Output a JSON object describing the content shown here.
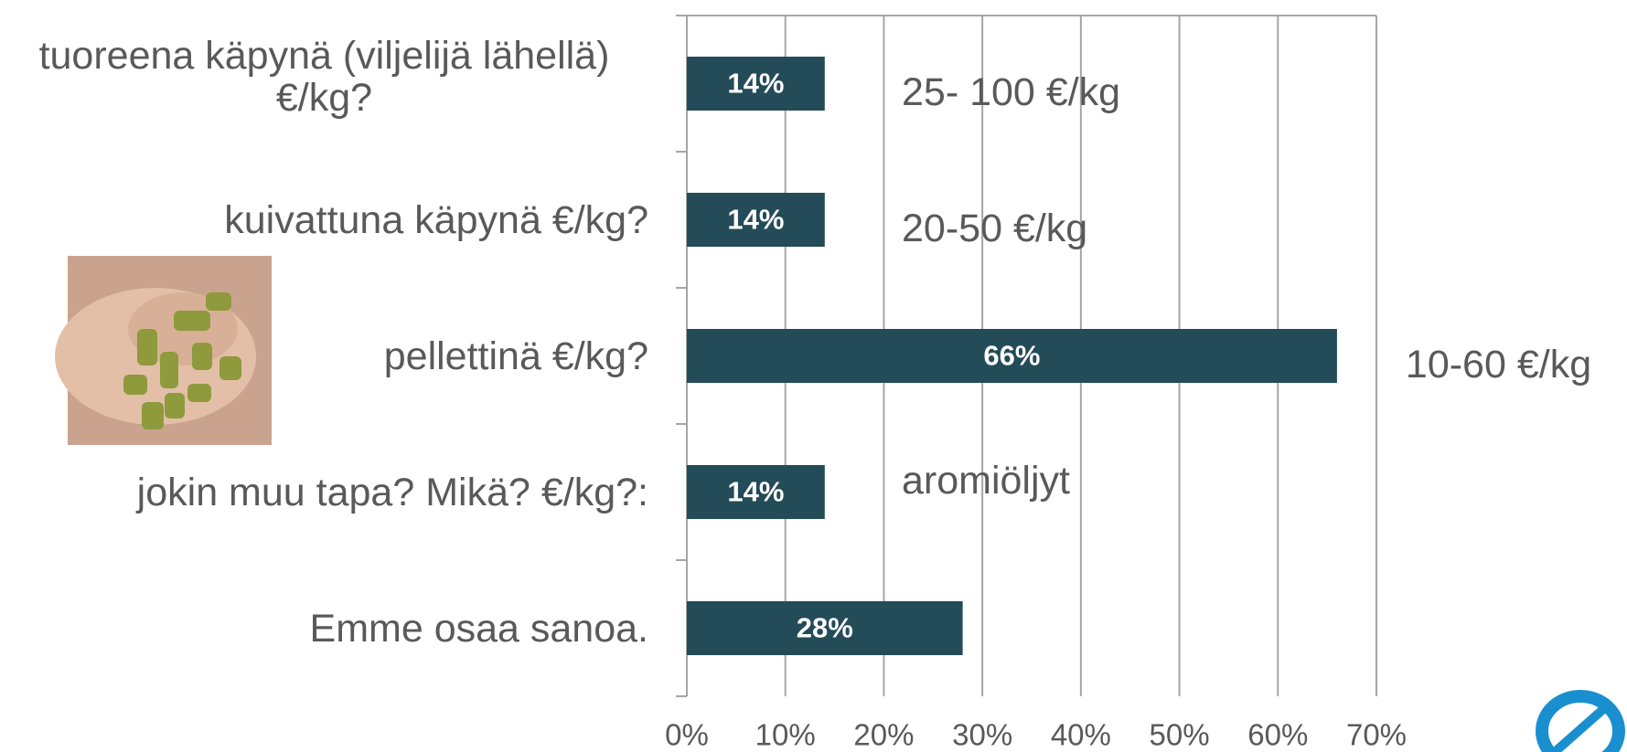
{
  "chart_data": {
    "type": "bar",
    "orientation": "horizontal",
    "categories": [
      "tuoreena käpynä (viljelijä lähellä) €/kg?",
      "kuivattuna käpynä €/kg?",
      "pellettinä €/kg?",
      "jokin muu tapa? Mikä? €/kg?:",
      "Emme osaa sanoa."
    ],
    "values": [
      14,
      14,
      66,
      14,
      28
    ],
    "value_labels": [
      "14%",
      "14%",
      "66%",
      "14%",
      "28%"
    ],
    "annotations": [
      "25- 100 €/kg",
      "20-50 €/kg",
      "10-60 €/kg",
      "aromiöljyt",
      null
    ],
    "color": "#234b58",
    "xlim": [
      0,
      70
    ],
    "xticks": [
      {
        "value": 0,
        "label": "0%"
      },
      {
        "value": 10,
        "label": "10%"
      },
      {
        "value": 20,
        "label": "20%"
      },
      {
        "value": 30,
        "label": "30%"
      },
      {
        "value": 40,
        "label": "40%"
      },
      {
        "value": 50,
        "label": "50%"
      },
      {
        "value": 60,
        "label": "60%"
      },
      {
        "value": 70,
        "label": "70%"
      }
    ],
    "grid": true
  }
}
